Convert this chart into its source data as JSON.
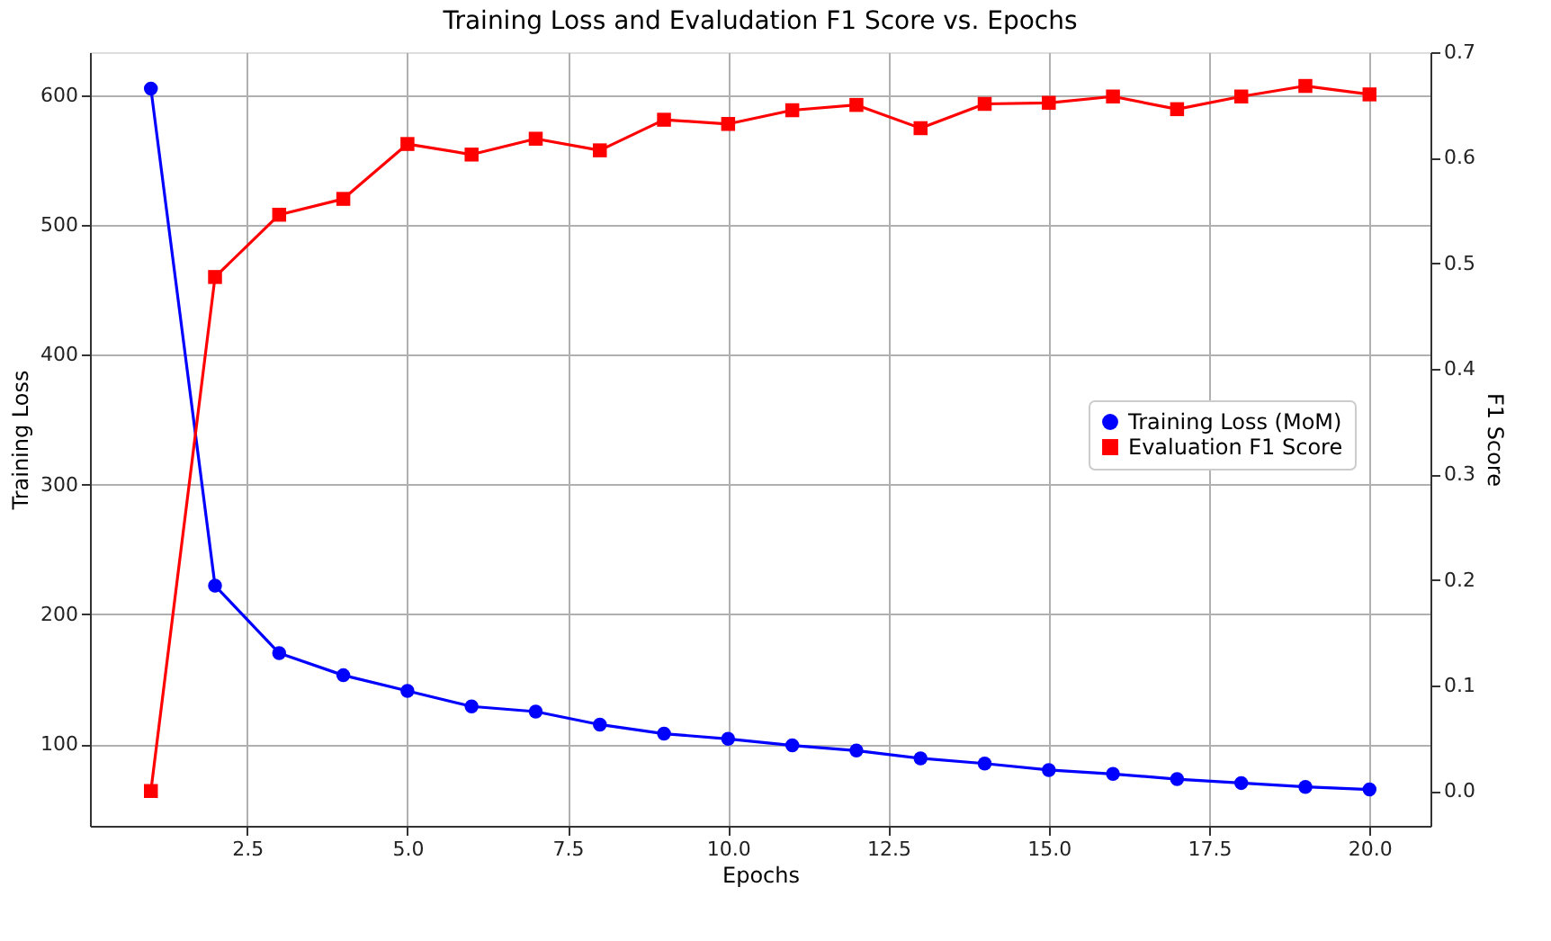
{
  "chart_data": {
    "type": "line",
    "title": "Training Loss and Evaludation F1 Score vs. Epochs",
    "xlabel": "Epochs",
    "ylabel": "Training Loss",
    "y2label": "F1 Score",
    "x": [
      1,
      2,
      3,
      4,
      5,
      6,
      7,
      8,
      9,
      10,
      11,
      12,
      13,
      14,
      15,
      16,
      17,
      18,
      19,
      20
    ],
    "series": [
      {
        "name": "Training Loss (MoM)",
        "color": "#0000ff",
        "marker": "circle",
        "values": [
          605,
          222,
          170,
          153,
          141,
          129,
          125,
          115,
          108,
          104,
          99,
          95,
          89,
          85,
          80,
          77,
          73,
          70,
          67,
          65
        ]
      },
      {
        "name": "Evaluation F1 Score",
        "color": "#ff0000",
        "marker": "square",
        "axis": "y2",
        "values": [
          0,
          0.487,
          0.546,
          0.561,
          0.613,
          0.603,
          0.618,
          0.607,
          0.636,
          0.632,
          0.645,
          0.65,
          0.628,
          0.651,
          0.652,
          0.658,
          0.646,
          0.658,
          0.668,
          0.66
        ]
      }
    ],
    "xlim": [
      0.05,
      20.95
    ],
    "ylim": [
      37,
      633
    ],
    "y2lim": [
      -0.033,
      0.7
    ],
    "xticks": [
      2.5,
      {
        "value": 5,
        "label": "5.0"
      },
      7.5,
      {
        "value": 10,
        "label": "10.0"
      },
      12.5,
      {
        "value": 15,
        "label": "15.0"
      },
      17.5,
      {
        "value": 20,
        "label": "20.0"
      }
    ],
    "yticks": [
      100,
      200,
      300,
      400,
      500,
      600
    ],
    "y2ticks": [
      {
        "value": 0,
        "label": "0.0"
      },
      0.1,
      0.2,
      0.3,
      0.4,
      0.5,
      0.6,
      0.7
    ],
    "grid": true,
    "legend": "right",
    "line_style": "solid"
  }
}
